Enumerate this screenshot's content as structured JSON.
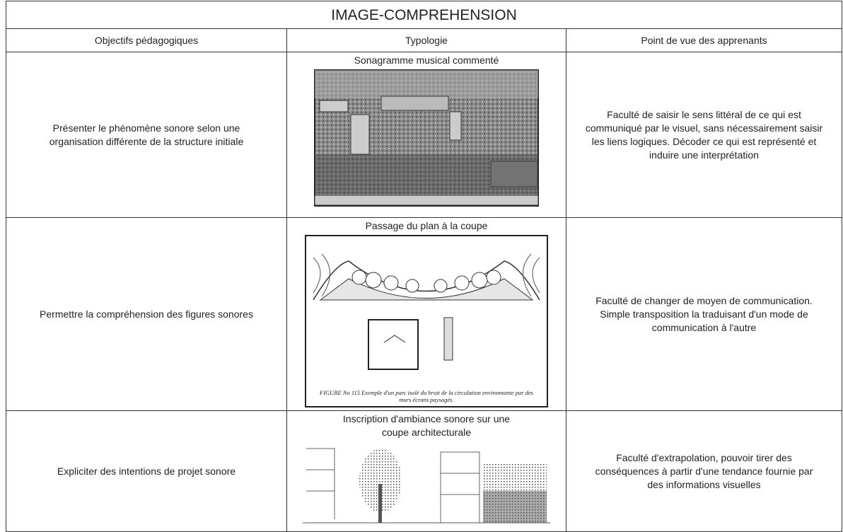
{
  "title": "IMAGE-COMPREHENSION",
  "table": {
    "header": [
      "Objectifs pédagogiques",
      "Typologie",
      "Point de vue des apprenants"
    ],
    "rows": [
      {
        "objective": "Présenter le phénomène sonore selon une organisation différente de la structure initiale",
        "typology": "Sonagramme musical commenté",
        "viewpoint": "Faculté de saisir le sens littéral de ce qui est communiqué par le visuel, sans nécessairement saisir les liens logiques. Décoder ce qui est représenté et induire une interprétation"
      },
      {
        "objective": "Permettre la compréhension des figures sonores",
        "typology": "Passage du plan à la coupe",
        "figure_caption": "FIGURE No 115 Exemple d'un parc isolé du bruit de la circulation environnante par des murs écrans paysagés.",
        "viewpoint": "Faculté de changer de moyen de communication. Simple transposition la traduisant d'un mode de communication à l'autre"
      },
      {
        "objective": "Expliciter des intentions de projet sonore",
        "typology": "Inscription d'ambiance sonore sur une coupe architecturale",
        "viewpoint": "Faculté d'extrapolation, pouvoir tirer des conséquences à partir d'une tendance fournie par des informations visuelles"
      }
    ]
  }
}
